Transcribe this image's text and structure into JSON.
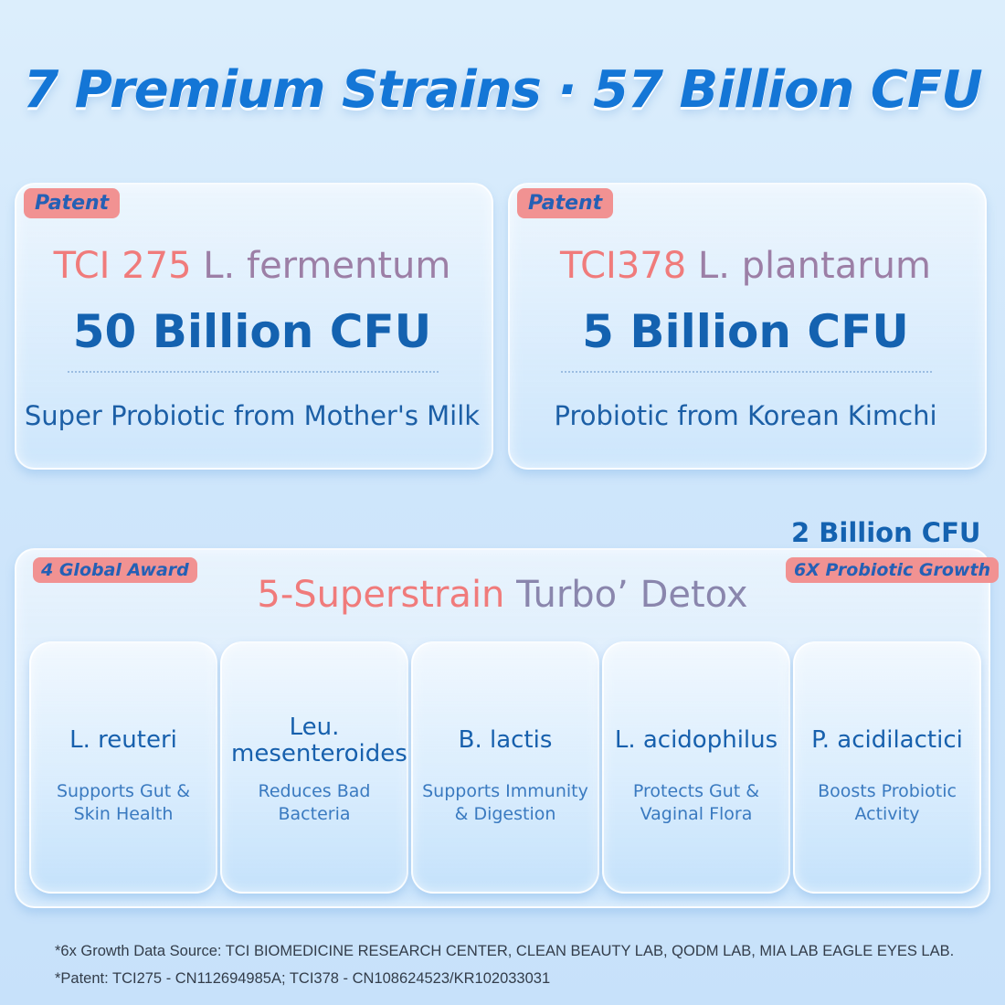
{
  "headline": "7 Premium Strains · 57 Billion CFU",
  "top_cards": [
    {
      "badge": "Patent",
      "strain_code": "TCI 275",
      "strain_species": "L. fermentum",
      "cfu": "50 Billion CFU",
      "description": "Super Probiotic from Mother's Milk"
    },
    {
      "badge": "Patent",
      "strain_code": "TCI378",
      "strain_species": "L. plantarum",
      "cfu": "5 Billion CFU",
      "description": "Probiotic from Korean Kimchi"
    }
  ],
  "blend": {
    "cfu": "2 Billion CFU",
    "left_badge": "4 Global Award",
    "right_badge": "6X Probiotic Growth",
    "title_part1": "5-Superstrain",
    "title_part2": "Turbo’ Detox",
    "strains": [
      {
        "name": "L. reuteri",
        "desc": "Supports Gut & Skin Health"
      },
      {
        "name": "Leu. mesenteroides",
        "desc": "Reduces Bad Bacteria"
      },
      {
        "name": "B. lactis",
        "desc": "Supports Immunity & Digestion"
      },
      {
        "name": "L. acidophilus",
        "desc": "Protects Gut & Vaginal Flora"
      },
      {
        "name": "P. acidilactici",
        "desc": "Boosts Probiotic Activity"
      }
    ]
  },
  "footnotes": [
    "*6x Growth Data Source: TCI BIOMEDICINE RESEARCH CENTER, CLEAN BEAUTY LAB, QODM LAB, MIA LAB EAGLE EYES LAB.",
    "*Patent: TCI275 - CN112694985A; TCI378 - CN108624523/KR102033031"
  ],
  "colors": {
    "accent_blue": "#1476d6",
    "badge_pink": "#f19292",
    "strain_coral": "#f07b7b"
  }
}
